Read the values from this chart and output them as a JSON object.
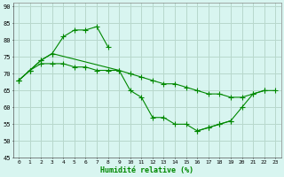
{
  "title": "",
  "xlabel": "Humidité relative (%)",
  "ylabel": "",
  "bg_color": "#d8f5f0",
  "grid_color": "#b8d8cc",
  "line_color": "#008800",
  "marker": "+",
  "marker_size": 4,
  "xlim": [
    -0.5,
    23.5
  ],
  "ylim": [
    45,
    91
  ],
  "yticks": [
    45,
    50,
    55,
    60,
    65,
    70,
    75,
    80,
    85,
    90
  ],
  "xticks": [
    0,
    1,
    2,
    3,
    4,
    5,
    6,
    7,
    8,
    9,
    10,
    11,
    12,
    13,
    14,
    15,
    16,
    17,
    18,
    19,
    20,
    21,
    22,
    23
  ],
  "series": [
    {
      "x": [
        0,
        1,
        2,
        3,
        4,
        5,
        6,
        7,
        8
      ],
      "y": [
        68,
        71,
        74,
        76,
        81,
        83,
        83,
        84,
        78
      ]
    },
    {
      "x": [
        0,
        1,
        2,
        3,
        9,
        10,
        11,
        12,
        13,
        14,
        15,
        16,
        17,
        18,
        19
      ],
      "y": [
        68,
        71,
        74,
        76,
        71,
        65,
        63,
        57,
        57,
        55,
        55,
        53,
        54,
        55,
        56
      ]
    },
    {
      "x": [
        0,
        1,
        2,
        3,
        4,
        5,
        6,
        7,
        8,
        9,
        10,
        11,
        12,
        13,
        14,
        15,
        16,
        17,
        18,
        19,
        20,
        21,
        22,
        23
      ],
      "y": [
        68,
        71,
        73,
        73,
        73,
        72,
        72,
        71,
        71,
        71,
        70,
        69,
        68,
        67,
        67,
        66,
        65,
        64,
        64,
        63,
        63,
        64,
        65,
        65
      ]
    },
    {
      "x": [
        16,
        17,
        18,
        19,
        20,
        21,
        22
      ],
      "y": [
        53,
        54,
        55,
        56,
        60,
        64,
        65
      ]
    }
  ]
}
